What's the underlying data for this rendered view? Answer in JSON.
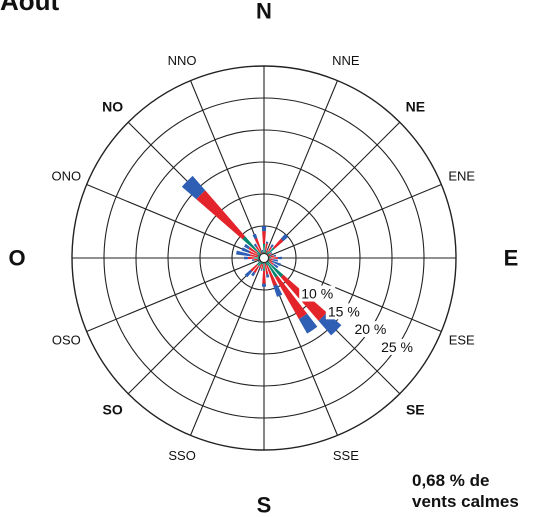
{
  "title": "Août",
  "chart_data": {
    "type": "polar-bar",
    "directions": [
      {
        "label": "N",
        "style": "cardinal"
      },
      {
        "label": "NNE",
        "style": "minor"
      },
      {
        "label": "NE",
        "style": "intercardinal"
      },
      {
        "label": "ENE",
        "style": "minor"
      },
      {
        "label": "E",
        "style": "cardinal"
      },
      {
        "label": "ESE",
        "style": "minor"
      },
      {
        "label": "SE",
        "style": "intercardinal"
      },
      {
        "label": "SSE",
        "style": "minor"
      },
      {
        "label": "S",
        "style": "cardinal"
      },
      {
        "label": "SSO",
        "style": "minor"
      },
      {
        "label": "SO",
        "style": "intercardinal"
      },
      {
        "label": "OSO",
        "style": "minor"
      },
      {
        "label": "O",
        "style": "cardinal"
      },
      {
        "label": "ONO",
        "style": "minor"
      },
      {
        "label": "NO",
        "style": "intercardinal"
      },
      {
        "label": "NNO",
        "style": "minor"
      }
    ],
    "ring_labels": [
      "10 %",
      "15 %",
      "20 %",
      "25 %"
    ],
    "rings_percent": [
      5,
      10,
      15,
      20,
      25,
      30
    ],
    "petals_per_direction": 2,
    "series": [
      {
        "color": "#00866e",
        "values": [
          2.2,
          1.3,
          0.8,
          1.2,
          2.2,
          0.8,
          0.6,
          1.0,
          1.2,
          0.8,
          0.8,
          1.0,
          4.0,
          3.5,
          1.2,
          0.4,
          2.0,
          1.0,
          1.0,
          1.5,
          1.5,
          0.5,
          0.4,
          1.0,
          1.5,
          1.0,
          1.0,
          1.3,
          4.5,
          0.8,
          1.3,
          0.4
        ]
      },
      {
        "color": "#e3242b",
        "values": [
          2.0,
          1.0,
          0.6,
          0.8,
          1.8,
          0.5,
          0.4,
          0.6,
          1.0,
          0.6,
          0.6,
          0.8,
          9.0,
          7.5,
          3.4,
          2.2,
          2.0,
          0.8,
          0.6,
          1.2,
          1.3,
          0.4,
          0.3,
          0.6,
          1.0,
          1.2,
          1.5,
          1.5,
          9.5,
          1.3,
          2.0,
          0.6
        ]
      },
      {
        "color": "#2e5fb5",
        "values": [
          0.8,
          0.3,
          0.2,
          0.5,
          1.0,
          0.2,
          0.2,
          0.3,
          0.6,
          0.8,
          1.4,
          0.8,
          3.0,
          2.6,
          1.8,
          0.5,
          0.5,
          0.2,
          0.2,
          0.6,
          1.2,
          0.2,
          0.1,
          0.3,
          0.6,
          2.2,
          1.2,
          0.8,
          3.0,
          0.5,
          0.7,
          0.3
        ]
      }
    ]
  },
  "calm_text_line1": "0,68 % de",
  "calm_text_line2": "vents calmes"
}
